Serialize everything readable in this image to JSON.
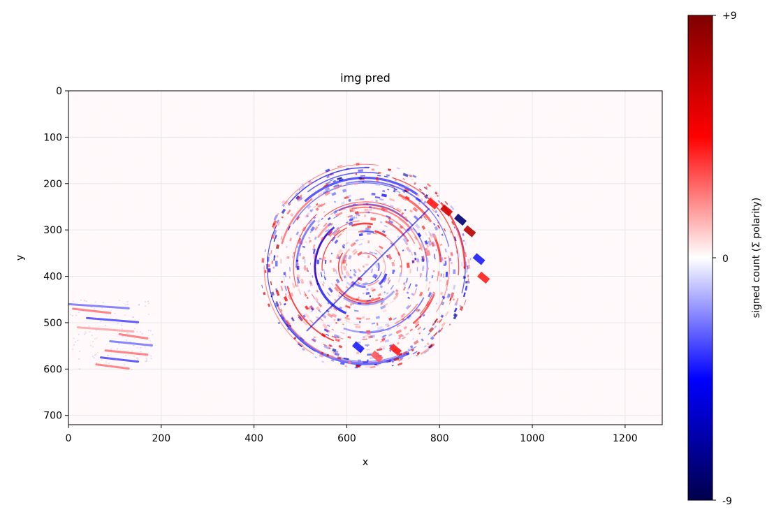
{
  "chart_data": {
    "type": "heatmap",
    "title": "img pred",
    "xlabel": "x",
    "ylabel": "y",
    "xlim": [
      0,
      1280
    ],
    "ylim": [
      720,
      0
    ],
    "x_ticks": [
      0,
      200,
      400,
      600,
      800,
      1000,
      1200
    ],
    "y_ticks": [
      0,
      100,
      200,
      300,
      400,
      500,
      600,
      700
    ],
    "grid": true,
    "colormap": "seismic",
    "colorbar": {
      "label": "signed count (Σ polarity)",
      "vmin": -9,
      "vmax": 9,
      "tick_labels": [
        "+9",
        "0",
        "-9"
      ],
      "tick_values": [
        9,
        0,
        -9
      ],
      "colors": [
        "#00004c",
        "#0000ff",
        "#ffffff",
        "#ff0000",
        "#800000"
      ]
    },
    "features": [
      {
        "name": "circular object",
        "center": [
          640,
          380
        ],
        "radius": 230
      },
      {
        "name": "hand",
        "x_range": [
          0,
          180
        ],
        "y_range": [
          450,
          600
        ]
      }
    ]
  }
}
